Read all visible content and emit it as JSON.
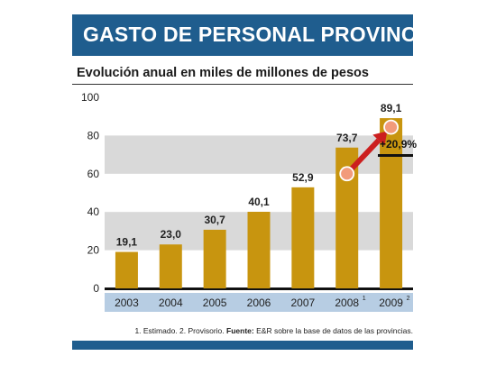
{
  "header": {
    "title": "GASTO DE PERSONAL PROVINCIAL"
  },
  "subtitle": "Evolución anual en miles de millones de pesos",
  "footnote": {
    "notes": "1. Estimado. 2. Provisorio.",
    "source_label": "Fuente:",
    "source_text": "E&R sobre la base de datos de las provincias."
  },
  "colors": {
    "header_bg": "#1f5d8e",
    "bar": "#c8950f",
    "band": "#d9d9d9",
    "axis_band": "#b7cde3",
    "arrow": "#cc1f1f",
    "marker": "#f29b7b"
  },
  "chart_data": {
    "type": "bar",
    "categories": [
      "2003",
      "2004",
      "2005",
      "2006",
      "2007",
      "2008",
      "2009"
    ],
    "category_superscripts": [
      "",
      "",
      "",
      "",
      "",
      "1",
      "2"
    ],
    "values": [
      19.1,
      23.0,
      30.7,
      40.1,
      52.9,
      73.7,
      89.1
    ],
    "value_labels": [
      "19,1",
      "23,0",
      "30,7",
      "40,1",
      "52,9",
      "73,7",
      "89,1"
    ],
    "yticks": [
      0,
      20,
      40,
      60,
      80,
      100
    ],
    "ylim": [
      0,
      100
    ],
    "grid": "alternating bands",
    "annotation": {
      "text": "+20,9%",
      "from": "2008",
      "to": "2009"
    }
  }
}
